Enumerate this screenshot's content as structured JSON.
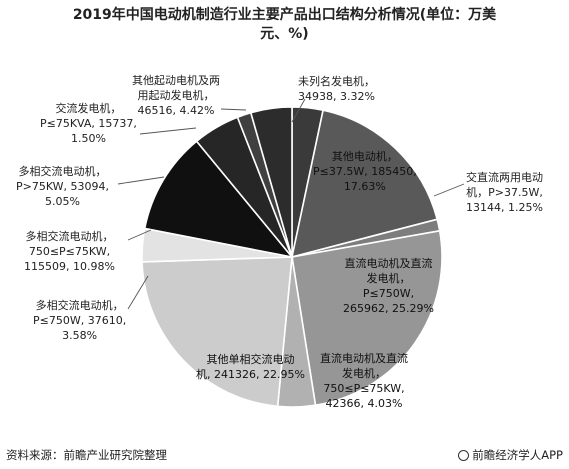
{
  "chart_data": {
    "type": "pie",
    "title_line1": "2019年中国电动机制造行业主要产品出口结构分析情况(单位：万美",
    "title_line2": "元、%)",
    "slices": [
      {
        "label": [
          "未列名发电机，",
          "34938, 3.32%"
        ],
        "value": 34938,
        "percent": 3.32,
        "color": "#3a3a3a"
      },
      {
        "label": [
          "其他电动机，",
          "P≤37.5W, 185450,",
          "17.63%"
        ],
        "value": 185450,
        "percent": 17.63,
        "color": "#595959"
      },
      {
        "label": [
          "交直流两用电动",
          "机，P>37.5W,",
          "13144, 1.25%"
        ],
        "value": 13144,
        "percent": 1.25,
        "color": "#7d7d7d"
      },
      {
        "label": [
          "直流电动机及直流",
          "发电机，",
          "P≤750W,",
          "265962, 25.29%"
        ],
        "value": 265962,
        "percent": 25.29,
        "color": "#969696"
      },
      {
        "label": [
          "直流电动机及直流",
          "发电机，",
          "750≤P≤75KW,",
          "42366, 4.03%"
        ],
        "value": 42366,
        "percent": 4.03,
        "color": "#b1b1b1"
      },
      {
        "label": [
          "其他单相交流电动",
          "机, 241326, 22.95%"
        ],
        "value": 241326,
        "percent": 22.95,
        "color": "#cccccc"
      },
      {
        "label": [
          "多相交流电动机，",
          "P≤750W, 37610,",
          "3.58%"
        ],
        "value": 37610,
        "percent": 3.58,
        "color": "#e3e3e3"
      },
      {
        "label": [
          "多相交流电动机，",
          "750≤P≤75KW,",
          "115509, 10.98%"
        ],
        "value": 115509,
        "percent": 10.98,
        "color": "#101010"
      },
      {
        "label": [
          "多相交流电动机，",
          "P>75KW, 53094,",
          "5.05%"
        ],
        "value": 53094,
        "percent": 5.05,
        "color": "#262626"
      },
      {
        "label": [
          "交流发电机，",
          "P≤75KVA, 15737,",
          "1.50%"
        ],
        "value": 15737,
        "percent": 1.5,
        "color": "#404040"
      },
      {
        "label": [
          "其他起动电机及两",
          "用起动发电机，",
          "46516, 4.42%"
        ],
        "value": 46516,
        "percent": 4.42,
        "color": "#2c2c2c"
      }
    ]
  },
  "footer": {
    "source": "资料来源：前瞻产业研究院整理",
    "brand": "前瞻经济学人APP"
  }
}
